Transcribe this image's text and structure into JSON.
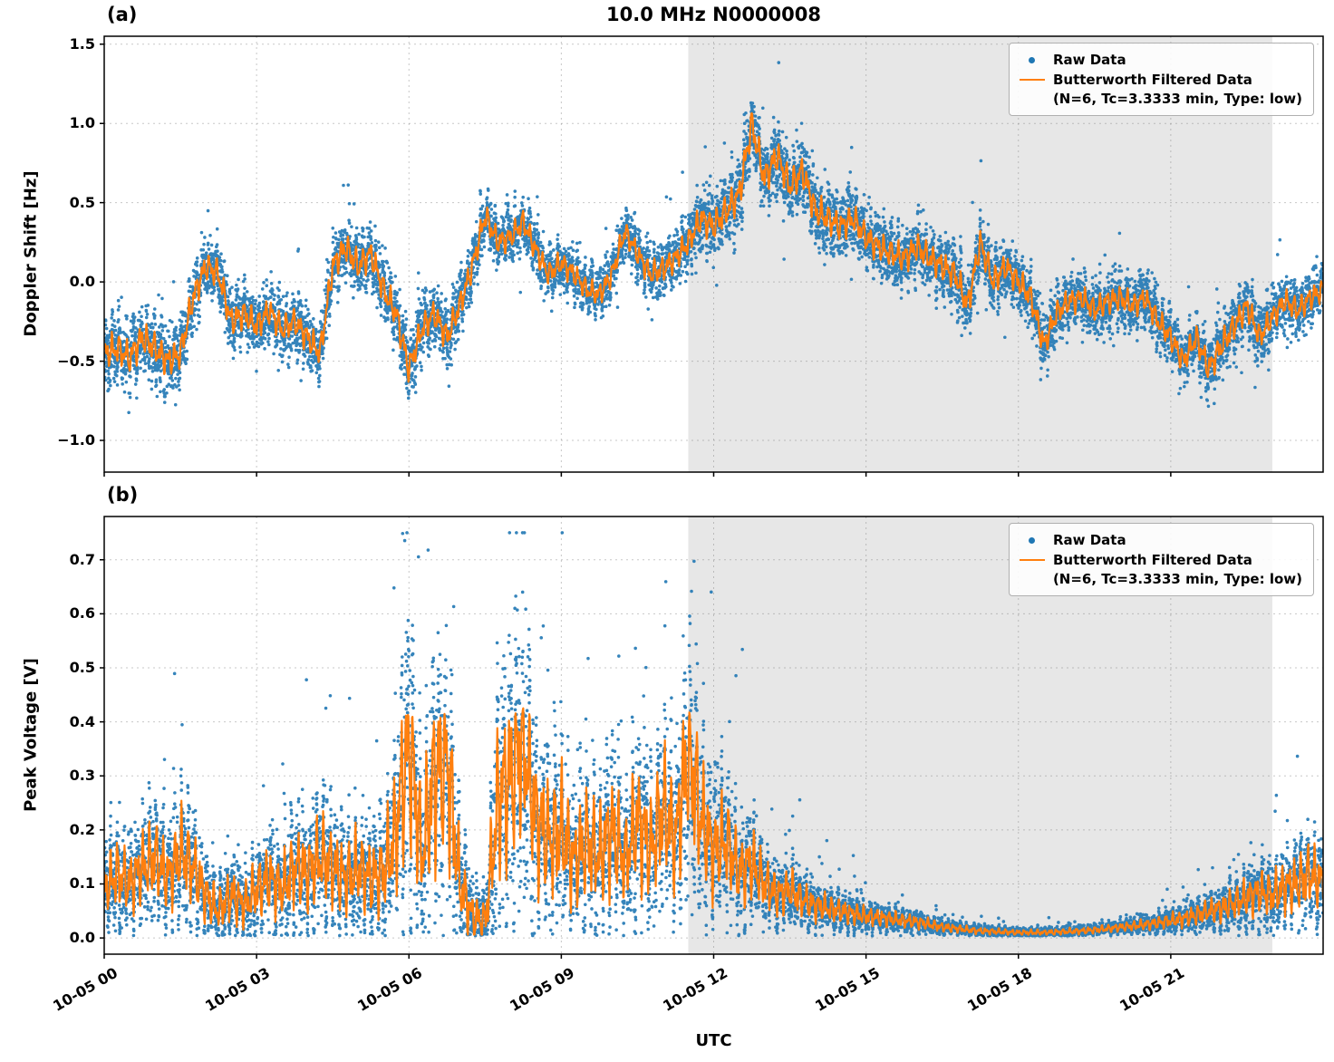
{
  "figure": {
    "title": "10.0 MHz N0000008",
    "xlabel": "UTC",
    "xtick_labels": [
      "10-05 00",
      "10-05 03",
      "10-05 06",
      "10-05 09",
      "10-05 12",
      "10-05 15",
      "10-05 18",
      "10-05 21"
    ]
  },
  "legend": {
    "raw_label": "Raw Data",
    "filtered_label": "Butterworth Filtered Data",
    "filtered_params": "(N=6, Tc=3.3333 min, Type: low)"
  },
  "colors": {
    "raw": "#1f77b4",
    "filtered": "#ff7f0e",
    "shade": "#e7e7e7",
    "grid": "#828282",
    "axis": "#000000"
  },
  "chart_data": [
    {
      "type": "scatter",
      "panel_label": "(a)",
      "ylabel": "Doppler Shift [Hz]",
      "ylim": [
        -1.2,
        1.55
      ],
      "yticks": [
        1.5,
        1.0,
        0.5,
        0.0,
        -0.5,
        -1.0
      ],
      "x_hours": [
        0,
        24
      ],
      "xticks_hours": [
        0,
        3,
        6,
        9,
        12,
        15,
        18,
        21
      ],
      "shaded_region_hours": [
        11.5,
        23.0
      ],
      "grid": "dashed",
      "legend_position": "upper right",
      "series": [
        {
          "name": "Raw Data",
          "type": "scatter",
          "color": "#1f77b4",
          "generated_from": "filtered_plus_noise",
          "n_points": 11000,
          "seed": 42,
          "noise": {
            "t": [
              0,
              1,
              2,
              4,
              6,
              8,
              10,
              11.5,
              12.5,
              14,
              15,
              17,
              19,
              21,
              22,
              23,
              24
            ],
            "amp": [
              0.3,
              0.28,
              0.26,
              0.25,
              0.27,
              0.22,
              0.2,
              0.24,
              0.3,
              0.28,
              0.25,
              0.26,
              0.22,
              0.22,
              0.26,
              0.22,
              0.22
            ],
            "outlier_prob": 0.04,
            "outlier_scale": 2.3
          }
        },
        {
          "name": "Butterworth Filtered Data (N=6, Tc=3.3333 min, Type: low)",
          "type": "line",
          "color": "#ff7f0e",
          "t0": 0,
          "dt": 0.25,
          "values": [
            -0.45,
            -0.42,
            -0.48,
            -0.35,
            -0.42,
            -0.5,
            -0.45,
            -0.1,
            0.1,
            0.05,
            -0.25,
            -0.2,
            -0.28,
            -0.18,
            -0.3,
            -0.25,
            -0.35,
            -0.45,
            0.1,
            0.22,
            0.1,
            0.18,
            -0.05,
            -0.2,
            -0.55,
            -0.3,
            -0.2,
            -0.35,
            -0.15,
            0.1,
            0.42,
            0.25,
            0.28,
            0.38,
            0.2,
            0.05,
            0.12,
            0.05,
            -0.05,
            -0.08,
            0.05,
            0.32,
            0.18,
            0.05,
            0.08,
            0.15,
            0.25,
            0.4,
            0.35,
            0.45,
            0.55,
            1.0,
            0.65,
            0.8,
            0.6,
            0.7,
            0.45,
            0.4,
            0.35,
            0.4,
            0.28,
            0.22,
            0.18,
            0.15,
            0.22,
            0.15,
            0.1,
            0.05,
            -0.15,
            0.25,
            0.0,
            0.1,
            0.0,
            -0.1,
            -0.4,
            -0.2,
            -0.12,
            -0.1,
            -0.18,
            -0.12,
            -0.1,
            -0.15,
            -0.1,
            -0.25,
            -0.35,
            -0.5,
            -0.35,
            -0.55,
            -0.4,
            -0.28,
            -0.15,
            -0.35,
            -0.22,
            -0.12,
            -0.18,
            -0.1,
            -0.05
          ]
        }
      ]
    },
    {
      "type": "scatter",
      "panel_label": "(b)",
      "ylabel": "Peak Voltage [V]",
      "ylim": [
        -0.03,
        0.78
      ],
      "yticks": [
        0.7,
        0.6,
        0.5,
        0.4,
        0.3,
        0.2,
        0.1,
        0.0
      ],
      "x_hours": [
        0,
        24
      ],
      "xticks_hours": [
        0,
        3,
        6,
        9,
        12,
        15,
        18,
        21
      ],
      "shaded_region_hours": [
        11.5,
        23.0
      ],
      "grid": "dashed",
      "legend_position": "upper right",
      "series": [
        {
          "name": "Raw Data",
          "type": "scatter",
          "color": "#1f77b4",
          "generated_from": "filtered_plus_noise",
          "n_points": 11000,
          "seed": 1234,
          "noise": {
            "t": [
              0,
              5,
              6,
              9,
              12,
              13,
              14,
              15,
              17,
              20,
              22,
              23,
              24
            ],
            "mul": [
              0.7,
              0.8,
              0.9,
              0.85,
              0.8,
              0.7,
              0.6,
              0.5,
              0.4,
              0.4,
              0.6,
              0.7,
              0.7
            ],
            "add": [
              0.03,
              0.035,
              0.045,
              0.045,
              0.03,
              0.02,
              0.015,
              0.012,
              0.006,
              0.006,
              0.012,
              0.02,
              0.03
            ],
            "spike_prob": 0.02,
            "spike_scale": 2.5
          }
        },
        {
          "name": "Butterworth Filtered Data (N=6, Tc=3.3333 min, Type: low)",
          "type": "line",
          "color": "#ff7f0e",
          "t0": 0,
          "dt": 0.25,
          "values": [
            0.09,
            0.12,
            0.1,
            0.13,
            0.15,
            0.11,
            0.16,
            0.13,
            0.08,
            0.05,
            0.08,
            0.06,
            0.09,
            0.11,
            0.09,
            0.13,
            0.12,
            0.15,
            0.13,
            0.11,
            0.13,
            0.11,
            0.12,
            0.2,
            0.38,
            0.15,
            0.3,
            0.33,
            0.1,
            0.04,
            0.03,
            0.25,
            0.3,
            0.38,
            0.22,
            0.18,
            0.2,
            0.14,
            0.18,
            0.15,
            0.2,
            0.14,
            0.22,
            0.16,
            0.24,
            0.18,
            0.35,
            0.22,
            0.16,
            0.18,
            0.12,
            0.14,
            0.1,
            0.08,
            0.09,
            0.07,
            0.06,
            0.055,
            0.05,
            0.045,
            0.04,
            0.038,
            0.035,
            0.032,
            0.03,
            0.025,
            0.02,
            0.018,
            0.015,
            0.013,
            0.012,
            0.011,
            0.01,
            0.01,
            0.01,
            0.011,
            0.012,
            0.013,
            0.015,
            0.017,
            0.02,
            0.022,
            0.025,
            0.028,
            0.032,
            0.036,
            0.042,
            0.05,
            0.055,
            0.065,
            0.075,
            0.085,
            0.08,
            0.095,
            0.1,
            0.12,
            0.1
          ]
        }
      ]
    }
  ]
}
